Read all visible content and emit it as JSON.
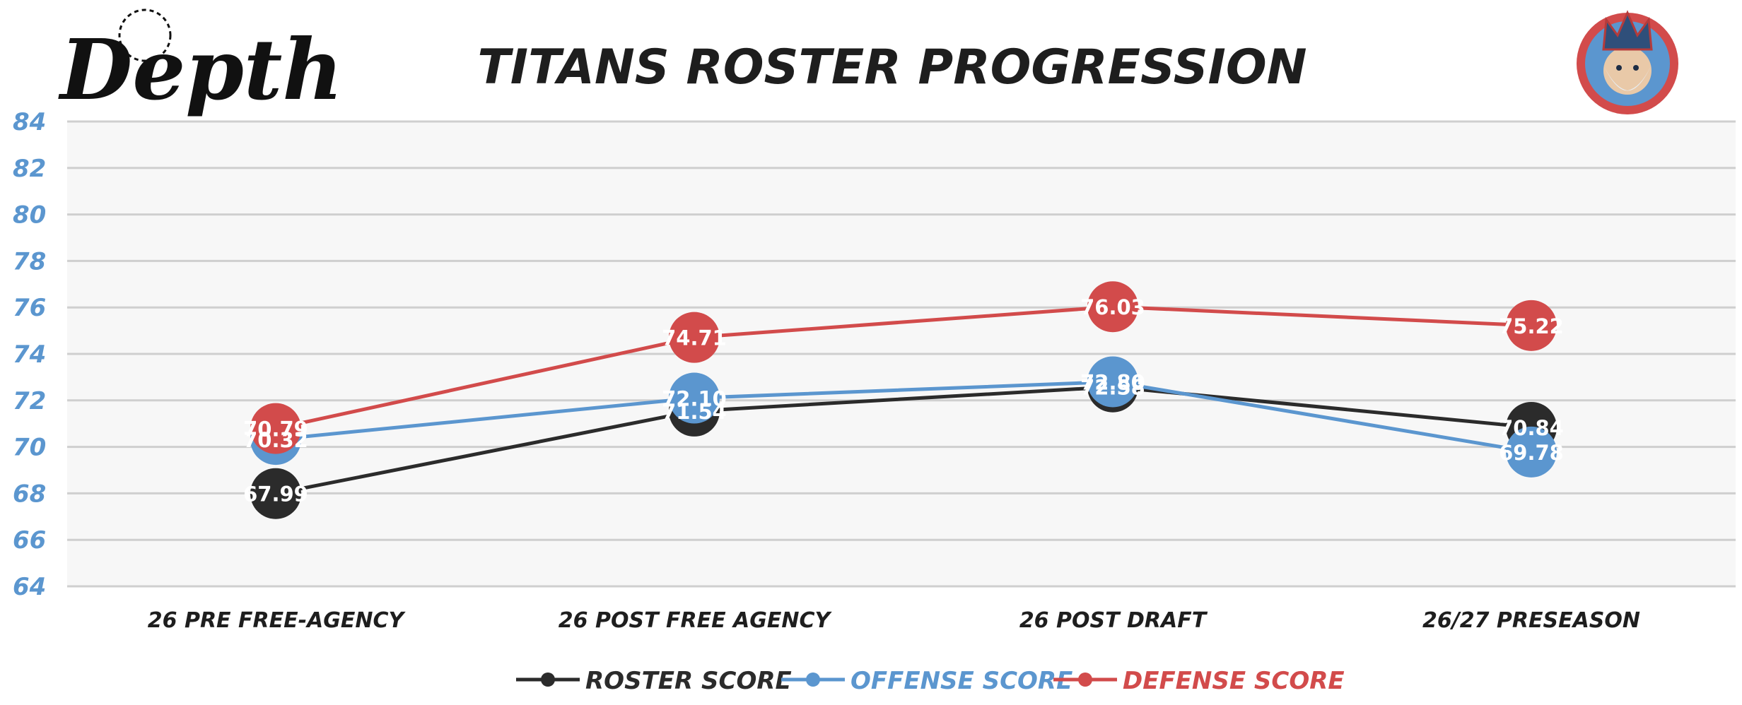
{
  "brand": {
    "logo_text": "Depth"
  },
  "colors": {
    "roster": "#2b2b2b",
    "offense": "#5b96cf",
    "defense": "#d24b4b",
    "tick_label": "#5b96cf",
    "plot_bg": "#f7f7f7",
    "grid": "#cfcfcf"
  },
  "chart_data": {
    "type": "line",
    "title": "TITANS ROSTER PROGRESSION",
    "categories": [
      "26 PRE FREE-AGENCY",
      "26 POST FREE AGENCY",
      "26 POST DRAFT",
      "26/27 PRESEASON"
    ],
    "ylim": [
      64,
      84
    ],
    "yticks": [
      64,
      66,
      68,
      70,
      72,
      74,
      76,
      78,
      80,
      82,
      84
    ],
    "grid": true,
    "legend_position": "bottom",
    "series": [
      {
        "name": "ROSTER SCORE",
        "color_key": "roster",
        "values": [
          67.99,
          71.54,
          72.58,
          70.84
        ]
      },
      {
        "name": "OFFENSE SCORE",
        "color_key": "offense",
        "values": [
          70.32,
          72.1,
          72.8,
          69.78
        ]
      },
      {
        "name": "DEFENSE SCORE",
        "color_key": "defense",
        "values": [
          70.79,
          74.71,
          76.03,
          75.22
        ]
      }
    ]
  }
}
